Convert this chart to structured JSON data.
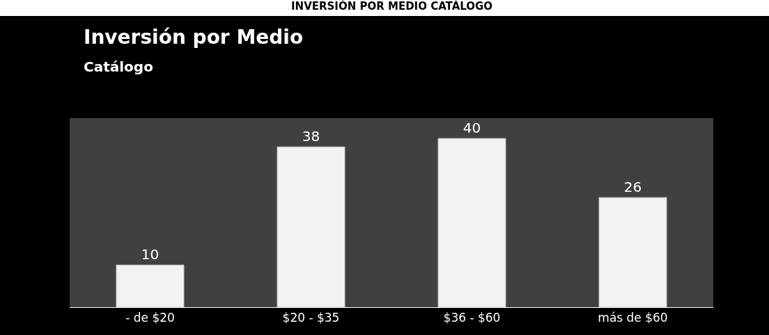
{
  "chart_data": {
    "type": "bar",
    "title": "Inversión por Medio",
    "subtitle": "Catálogo",
    "annotations": [
      "INVERSIÓN POR MEDIO CATÁLOGO"
    ],
    "categories": [
      "- de $20",
      "$20 - $35",
      "$36 - $60",
      "más de $60"
    ],
    "values": [
      10,
      38,
      40,
      26
    ],
    "color": "#f2f2f2",
    "data_labels": true,
    "grid": false,
    "legend": false
  }
}
